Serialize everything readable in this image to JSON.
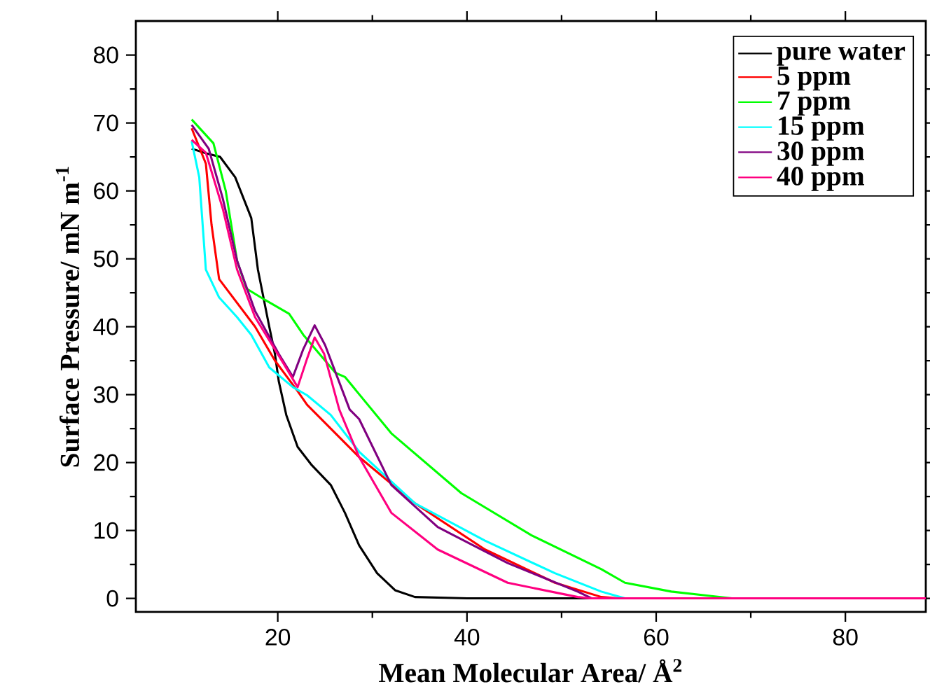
{
  "chart_data": {
    "type": "line",
    "xlabel": "Mean Molecular Area/ Å$^{2}$",
    "ylabel": "Surface Pressure/ mN m$^{-1}$",
    "xlim": [
      5,
      88.5
    ],
    "ylim": [
      -2,
      85
    ],
    "xticks": [
      20,
      40,
      60,
      80
    ],
    "yticks": [
      0,
      10,
      20,
      30,
      40,
      50,
      60,
      70,
      80
    ],
    "legend": "top right",
    "grid": false,
    "marker": "none",
    "line_style": "solid",
    "series": [
      {
        "name": "pure water",
        "color": "#000000",
        "x": [
          10.9,
          12.5,
          13.9,
          15.5,
          17.2,
          17.9,
          19.1,
          19.7,
          20.1,
          20.9,
          22.1,
          23.6,
          25.6,
          27.1,
          28.6,
          30.5,
          32.4,
          34.5,
          40,
          60,
          88.5
        ],
        "values": [
          66.2,
          65.5,
          65,
          62,
          56,
          48.4,
          40,
          36,
          32,
          27,
          22.3,
          19.6,
          16.7,
          12.6,
          7.8,
          3.7,
          1.2,
          0.2,
          0,
          0,
          0
        ]
      },
      {
        "name": "5 ppm",
        "color": "#ff0000",
        "x": [
          10.9,
          12.4,
          13,
          13.8,
          15.7,
          17.6,
          19.7,
          22.1,
          23.1,
          28.6,
          34.5,
          41.9,
          49.3,
          54.2,
          56,
          70,
          88.5
        ],
        "values": [
          69.2,
          64,
          55,
          47,
          43.5,
          40,
          35,
          30.5,
          28.5,
          20.8,
          14,
          7.2,
          2.3,
          0.2,
          0,
          0,
          0
        ]
      },
      {
        "name": "7 ppm",
        "color": "#00ff00",
        "x": [
          10.9,
          13.2,
          14.5,
          15.7,
          16.7,
          18.7,
          21.2,
          22.7,
          26.1,
          27.1,
          32,
          39.4,
          46.8,
          54.2,
          56.7,
          61.6,
          68,
          88.5
        ],
        "values": [
          70.5,
          67,
          60,
          49.7,
          45.6,
          43.9,
          41.9,
          38.8,
          33.2,
          32.6,
          24.3,
          15.5,
          9.3,
          4.3,
          2.3,
          1,
          0,
          0
        ]
      },
      {
        "name": "15 ppm",
        "color": "#00ffff",
        "x": [
          10.9,
          11.7,
          12.4,
          13.8,
          15.7,
          17.2,
          19.1,
          21.6,
          23.1,
          25.6,
          28.6,
          34.5,
          41.9,
          49.3,
          54.2,
          56.7,
          70,
          88.5
        ],
        "values": [
          67.3,
          62,
          48.4,
          44.3,
          41.4,
          38.8,
          34,
          31.1,
          29.9,
          27,
          21.6,
          14,
          8.5,
          3.7,
          1,
          0,
          0,
          0
        ]
      },
      {
        "name": "30 ppm",
        "color": "#800080",
        "x": [
          10.9,
          12.7,
          14.2,
          15.7,
          17.6,
          20.1,
          21.6,
          22.7,
          23.9,
          25,
          27.6,
          28.6,
          32,
          36.9,
          44.3,
          51.7,
          53.2,
          70,
          88.5
        ],
        "values": [
          69.7,
          66.2,
          58.8,
          49.7,
          42.3,
          36,
          32.6,
          36.7,
          40.2,
          37.3,
          27.8,
          26.4,
          16.7,
          10.5,
          5.2,
          1,
          0,
          0,
          0
        ]
      },
      {
        "name": "40 ppm",
        "color": "#ff0080",
        "x": [
          10.9,
          12.4,
          14.2,
          15.7,
          17.6,
          20.6,
          22.1,
          23.1,
          23.9,
          24.9,
          26.5,
          28.6,
          32,
          36.9,
          44.3,
          51.7,
          53,
          70,
          88.5
        ],
        "values": [
          67.5,
          65.6,
          57.3,
          48.4,
          41.4,
          34.6,
          31.1,
          35.3,
          38.4,
          36,
          27.8,
          20.8,
          12.6,
          7.2,
          2.3,
          0.2,
          0,
          0,
          0
        ]
      }
    ]
  }
}
